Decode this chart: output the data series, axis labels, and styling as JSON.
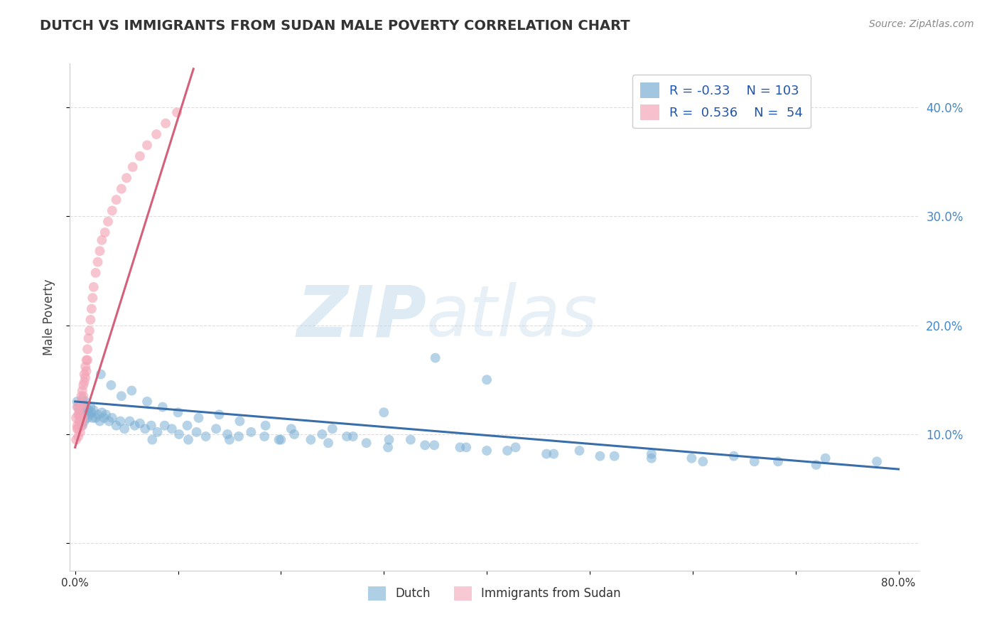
{
  "title": "DUTCH VS IMMIGRANTS FROM SUDAN MALE POVERTY CORRELATION CHART",
  "source": "Source: ZipAtlas.com",
  "ylabel": "Male Poverty",
  "xlim": [
    -0.005,
    0.82
  ],
  "ylim": [
    -0.025,
    0.44
  ],
  "xticks": [
    0.0,
    0.1,
    0.2,
    0.3,
    0.4,
    0.5,
    0.6,
    0.7,
    0.8
  ],
  "xticklabels": [
    "0.0%",
    "",
    "",
    "",
    "",
    "",
    "",
    "",
    "80.0%"
  ],
  "yticks_right": [
    0.1,
    0.2,
    0.3,
    0.4
  ],
  "yticklabels_right": [
    "10.0%",
    "20.0%",
    "30.0%",
    "40.0%"
  ],
  "dutch_color": "#7BAFD4",
  "sudan_color": "#F4A6B8",
  "dutch_R": -0.33,
  "dutch_N": 103,
  "sudan_R": 0.536,
  "sudan_N": 54,
  "trend_blue": "#3A6EA8",
  "trend_pink": "#D4607A",
  "watermark_zip": "ZIP",
  "watermark_atlas": "atlas",
  "watermark_color_zip": "#B8D4E8",
  "watermark_color_atlas": "#B8D4E8",
  "legend_label_dutch": "Dutch",
  "legend_label_sudan": "Immigrants from Sudan",
  "background_color": "#FFFFFF",
  "grid_color": "#DDDDDD",
  "dutch_x": [
    0.002,
    0.003,
    0.004,
    0.005,
    0.005,
    0.006,
    0.006,
    0.007,
    0.007,
    0.008,
    0.008,
    0.009,
    0.009,
    0.01,
    0.01,
    0.011,
    0.012,
    0.013,
    0.014,
    0.015,
    0.016,
    0.017,
    0.018,
    0.02,
    0.022,
    0.024,
    0.026,
    0.028,
    0.03,
    0.033,
    0.036,
    0.04,
    0.044,
    0.048,
    0.053,
    0.058,
    0.063,
    0.068,
    0.074,
    0.08,
    0.087,
    0.094,
    0.101,
    0.109,
    0.118,
    0.127,
    0.137,
    0.148,
    0.159,
    0.171,
    0.184,
    0.198,
    0.213,
    0.229,
    0.246,
    0.264,
    0.283,
    0.304,
    0.326,
    0.349,
    0.374,
    0.4,
    0.428,
    0.458,
    0.49,
    0.524,
    0.56,
    0.599,
    0.64,
    0.683,
    0.729,
    0.779,
    0.025,
    0.035,
    0.045,
    0.055,
    0.07,
    0.085,
    0.1,
    0.12,
    0.14,
    0.16,
    0.185,
    0.21,
    0.24,
    0.27,
    0.305,
    0.34,
    0.38,
    0.42,
    0.465,
    0.51,
    0.56,
    0.61,
    0.66,
    0.72,
    0.4,
    0.35,
    0.3,
    0.25,
    0.2,
    0.15,
    0.11,
    0.075
  ],
  "dutch_y": [
    0.13,
    0.125,
    0.118,
    0.122,
    0.115,
    0.128,
    0.11,
    0.132,
    0.108,
    0.125,
    0.115,
    0.12,
    0.112,
    0.13,
    0.118,
    0.125,
    0.115,
    0.122,
    0.118,
    0.125,
    0.12,
    0.115,
    0.122,
    0.115,
    0.118,
    0.112,
    0.12,
    0.115,
    0.118,
    0.112,
    0.115,
    0.108,
    0.112,
    0.105,
    0.112,
    0.108,
    0.11,
    0.105,
    0.108,
    0.102,
    0.108,
    0.105,
    0.1,
    0.108,
    0.102,
    0.098,
    0.105,
    0.1,
    0.098,
    0.102,
    0.098,
    0.095,
    0.1,
    0.095,
    0.092,
    0.098,
    0.092,
    0.088,
    0.095,
    0.09,
    0.088,
    0.085,
    0.088,
    0.082,
    0.085,
    0.08,
    0.082,
    0.078,
    0.08,
    0.075,
    0.078,
    0.075,
    0.155,
    0.145,
    0.135,
    0.14,
    0.13,
    0.125,
    0.12,
    0.115,
    0.118,
    0.112,
    0.108,
    0.105,
    0.1,
    0.098,
    0.095,
    0.09,
    0.088,
    0.085,
    0.082,
    0.08,
    0.078,
    0.075,
    0.075,
    0.072,
    0.15,
    0.17,
    0.12,
    0.105,
    0.095,
    0.095,
    0.095,
    0.095
  ],
  "sudan_x": [
    0.001,
    0.002,
    0.002,
    0.003,
    0.003,
    0.004,
    0.004,
    0.005,
    0.005,
    0.006,
    0.006,
    0.006,
    0.007,
    0.007,
    0.008,
    0.008,
    0.009,
    0.009,
    0.01,
    0.01,
    0.011,
    0.011,
    0.012,
    0.012,
    0.013,
    0.014,
    0.015,
    0.016,
    0.017,
    0.018,
    0.02,
    0.022,
    0.024,
    0.026,
    0.029,
    0.032,
    0.036,
    0.04,
    0.045,
    0.05,
    0.056,
    0.063,
    0.07,
    0.079,
    0.088,
    0.099,
    0.001,
    0.002,
    0.003,
    0.004,
    0.005,
    0.006,
    0.007,
    0.008
  ],
  "sudan_y": [
    0.115,
    0.125,
    0.108,
    0.118,
    0.105,
    0.122,
    0.112,
    0.128,
    0.118,
    0.135,
    0.125,
    0.115,
    0.14,
    0.128,
    0.145,
    0.135,
    0.155,
    0.148,
    0.162,
    0.152,
    0.168,
    0.158,
    0.178,
    0.168,
    0.188,
    0.195,
    0.205,
    0.215,
    0.225,
    0.235,
    0.248,
    0.258,
    0.268,
    0.278,
    0.285,
    0.295,
    0.305,
    0.315,
    0.325,
    0.335,
    0.345,
    0.355,
    0.365,
    0.375,
    0.385,
    0.395,
    0.095,
    0.105,
    0.098,
    0.108,
    0.102,
    0.112,
    0.108,
    0.115
  ],
  "sudan_trend_x0": 0.0,
  "sudan_trend_x1": 0.115,
  "sudan_trend_y0": 0.088,
  "sudan_trend_y1": 0.435,
  "dutch_trend_x0": 0.0,
  "dutch_trend_x1": 0.8,
  "dutch_trend_y0": 0.13,
  "dutch_trend_y1": 0.068
}
